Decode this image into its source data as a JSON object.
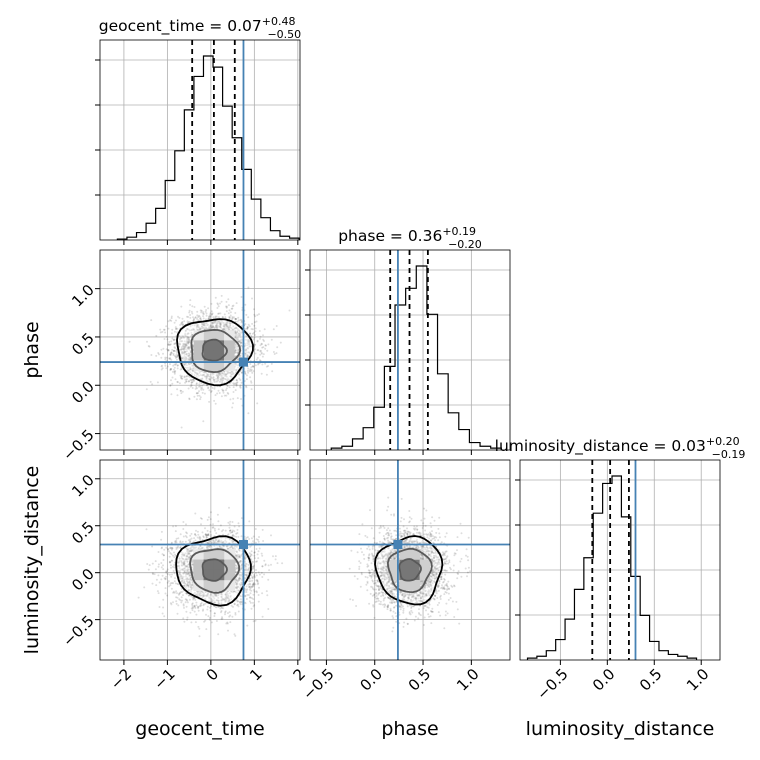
{
  "chart_data": {
    "type": "corner",
    "parameters": [
      "geocent_time",
      "phase",
      "luminosity_distance"
    ],
    "truths": {
      "geocent_time": 0.75,
      "phase": 0.24,
      "luminosity_distance": 0.3
    },
    "truth_color": "#4682b4",
    "axis_labels": [
      "geocent_time",
      "phase",
      "luminosity_distance"
    ],
    "titles": [
      {
        "param": "geocent_time",
        "prefix": "geocent_time = 0.07",
        "sup": "+0.48",
        "sub": "−0.50"
      },
      {
        "param": "phase",
        "prefix": "phase = 0.36",
        "sup": "+0.19",
        "sub": "−0.20"
      },
      {
        "param": "luminosity_distance",
        "prefix": "luminosity_distance = 0.03",
        "sup": "+0.20",
        "sub": "−0.19"
      }
    ],
    "ranges": {
      "geocent_time": [
        -2.55,
        2.05
      ],
      "phase": [
        -0.67,
        1.4
      ],
      "luminosity_distance": [
        -0.93,
        1.2
      ]
    },
    "ticks": {
      "geocent_time": {
        "values": [
          -2,
          -1,
          0,
          1,
          2
        ],
        "labels": [
          "−2",
          "−1",
          "0",
          "1",
          "2"
        ]
      },
      "phase": {
        "values": [
          -0.5,
          0.0,
          0.5,
          1.0
        ],
        "labels": [
          "−0.5",
          "0.0",
          "0.5",
          "1.0"
        ]
      },
      "luminosity_distance": {
        "values": [
          -0.5,
          0.0,
          0.5,
          1.0
        ],
        "labels": [
          "−0.5",
          "0.0",
          "0.5",
          "1.0"
        ]
      }
    },
    "quantile_lines": {
      "geocent_time": [
        -0.43,
        0.07,
        0.55
      ],
      "phase": [
        0.16,
        0.36,
        0.55
      ],
      "luminosity_distance": [
        -0.16,
        0.03,
        0.23
      ]
    },
    "histograms": {
      "geocent_time": {
        "edges": [
          -2.15,
          -1.93,
          -1.71,
          -1.49,
          -1.27,
          -1.05,
          -0.83,
          -0.61,
          -0.39,
          -0.17,
          0.05,
          0.27,
          0.49,
          0.71,
          0.93,
          1.15,
          1.37,
          1.59,
          1.81,
          2.03
        ],
        "counts": [
          0.005,
          0.015,
          0.04,
          0.09,
          0.17,
          0.32,
          0.48,
          0.7,
          0.88,
          0.99,
          0.93,
          0.72,
          0.55,
          0.38,
          0.22,
          0.12,
          0.05,
          0.02,
          0.01
        ]
      },
      "phase": {
        "edges": [
          -0.45,
          -0.34,
          -0.23,
          -0.12,
          -0.01,
          0.1,
          0.21,
          0.32,
          0.43,
          0.54,
          0.65,
          0.76,
          0.87,
          0.98,
          1.09,
          1.2,
          1.31
        ],
        "counts": [
          0.01,
          0.02,
          0.06,
          0.12,
          0.23,
          0.45,
          0.78,
          0.87,
          0.99,
          0.73,
          0.41,
          0.2,
          0.11,
          0.04,
          0.02,
          0.01
        ]
      },
      "luminosity_distance": {
        "edges": [
          -0.85,
          -0.75,
          -0.65,
          -0.55,
          -0.45,
          -0.35,
          -0.25,
          -0.15,
          -0.05,
          0.05,
          0.15,
          0.25,
          0.35,
          0.45,
          0.55,
          0.65,
          0.75,
          0.85,
          0.95
        ],
        "counts": [
          0.01,
          0.02,
          0.05,
          0.11,
          0.22,
          0.38,
          0.55,
          0.79,
          0.95,
          0.99,
          0.77,
          0.45,
          0.24,
          0.1,
          0.05,
          0.03,
          0.02,
          0.01
        ]
      }
    },
    "scatter_samples": {
      "count": 3000,
      "sigma": {
        "geocent_time": 0.48,
        "phase": 0.19,
        "luminosity_distance": 0.2
      }
    },
    "contour_levels": 3,
    "density_peak": {
      "geocent_time": 0.07,
      "phase": 0.36,
      "luminosity_distance": 0.03
    },
    "grid": true
  }
}
